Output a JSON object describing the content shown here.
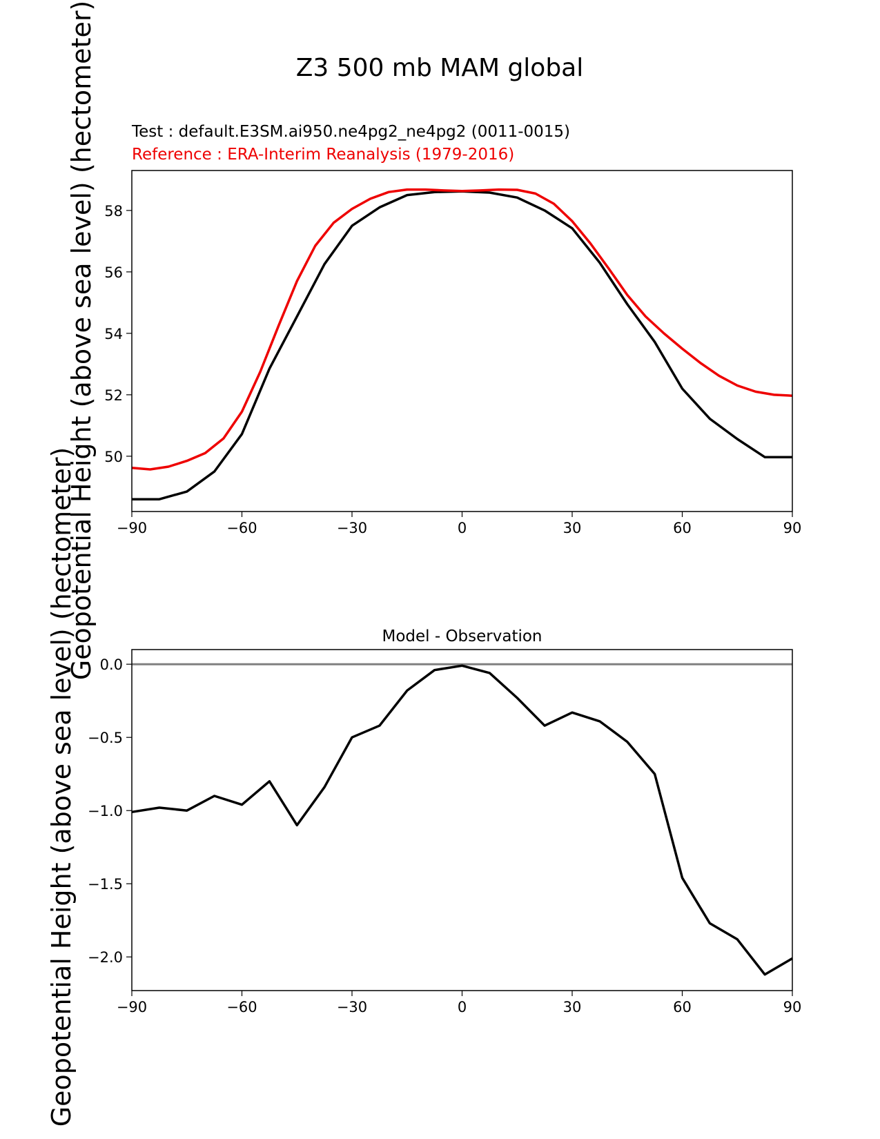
{
  "figure": {
    "title": "Z3 500 mb MAM global",
    "test_label": "Test : default.E3SM.ai950.ne4pg2_ne4pg2 (0011-0015)",
    "reference_label": "Reference : ERA-Interim Reanalysis (1979-2016)",
    "ylabel": "Geopotential Height (above sea level) (hectometer)",
    "colors": {
      "test": "#000000",
      "reference": "#ee0000",
      "zero_line": "#808080"
    }
  },
  "chart_data": [
    {
      "type": "line",
      "title": "",
      "xlabel": "",
      "ylabel": "Geopotential Height (above sea level) (hectometer)",
      "xlim": [
        -90,
        90
      ],
      "ylim": [
        48.2,
        59.3
      ],
      "xticks": [
        -90,
        -60,
        -30,
        0,
        30,
        60,
        90
      ],
      "xtick_labels": [
        "−90",
        "−60",
        "−30",
        "0",
        "30",
        "60",
        "90"
      ],
      "yticks": [
        50,
        52,
        54,
        56,
        58
      ],
      "ytick_labels": [
        "50",
        "52",
        "54",
        "56",
        "58"
      ],
      "series": [
        {
          "name": "Test",
          "color": "#000000",
          "x": [
            -90,
            -82.5,
            -75,
            -67.5,
            -60,
            -52.5,
            -45,
            -37.5,
            -30,
            -22.5,
            -15,
            -7.5,
            0,
            7.5,
            15,
            22.5,
            30,
            37.5,
            45,
            52.5,
            60,
            67.5,
            75,
            82.5,
            90
          ],
          "y": [
            48.6,
            48.6,
            48.85,
            49.5,
            50.72,
            52.85,
            54.55,
            56.25,
            57.5,
            58.1,
            58.5,
            58.6,
            58.62,
            58.58,
            58.42,
            58.0,
            57.42,
            56.3,
            54.95,
            53.72,
            52.2,
            51.22,
            50.56,
            49.97,
            49.97
          ]
        },
        {
          "name": "Reference",
          "color": "#ee0000",
          "x": [
            -90,
            -85,
            -80,
            -75,
            -70,
            -65,
            -60,
            -55,
            -50,
            -45,
            -40,
            -35,
            -30,
            -25,
            -20,
            -15,
            -10,
            -5,
            0,
            5,
            10,
            15,
            20,
            25,
            30,
            35,
            40,
            45,
            50,
            55,
            60,
            65,
            70,
            75,
            80,
            85,
            90
          ],
          "y": [
            49.62,
            49.57,
            49.66,
            49.85,
            50.1,
            50.58,
            51.45,
            52.75,
            54.25,
            55.7,
            56.85,
            57.6,
            58.05,
            58.38,
            58.6,
            58.68,
            58.68,
            58.65,
            58.63,
            58.65,
            58.68,
            58.67,
            58.55,
            58.22,
            57.65,
            56.92,
            56.1,
            55.25,
            54.55,
            54.0,
            53.5,
            53.03,
            52.62,
            52.3,
            52.1,
            52.0,
            51.97
          ]
        }
      ]
    },
    {
      "type": "line",
      "title": "Model - Observation",
      "xlabel": "",
      "ylabel": "Geopotential Height (above sea level) (hectometer)",
      "xlim": [
        -90,
        90
      ],
      "ylim": [
        -2.23,
        0.1
      ],
      "xticks": [
        -90,
        -60,
        -30,
        0,
        30,
        60,
        90
      ],
      "xtick_labels": [
        "−90",
        "−60",
        "−30",
        "0",
        "30",
        "60",
        "90"
      ],
      "yticks": [
        0.0,
        -0.5,
        -1.0,
        -1.5,
        -2.0
      ],
      "ytick_labels": [
        "0.0",
        "−0.5",
        "−1.0",
        "−1.5",
        "−2.0"
      ],
      "zero_line": 0.0,
      "series": [
        {
          "name": "Model - Observation",
          "color": "#000000",
          "x": [
            -90,
            -82.5,
            -75,
            -67.5,
            -60,
            -52.5,
            -45,
            -37.5,
            -30,
            -22.5,
            -15,
            -7.5,
            0,
            7.5,
            15,
            22.5,
            30,
            37.5,
            45,
            52.5,
            60,
            67.5,
            75,
            82.5,
            90
          ],
          "y": [
            -1.01,
            -0.98,
            -1.0,
            -0.9,
            -0.96,
            -0.8,
            -1.1,
            -0.84,
            -0.5,
            -0.42,
            -0.18,
            -0.04,
            -0.01,
            -0.06,
            -0.23,
            -0.42,
            -0.33,
            -0.39,
            -0.53,
            -0.75,
            -1.46,
            -1.77,
            -1.88,
            -2.12,
            -2.01
          ]
        }
      ]
    }
  ]
}
